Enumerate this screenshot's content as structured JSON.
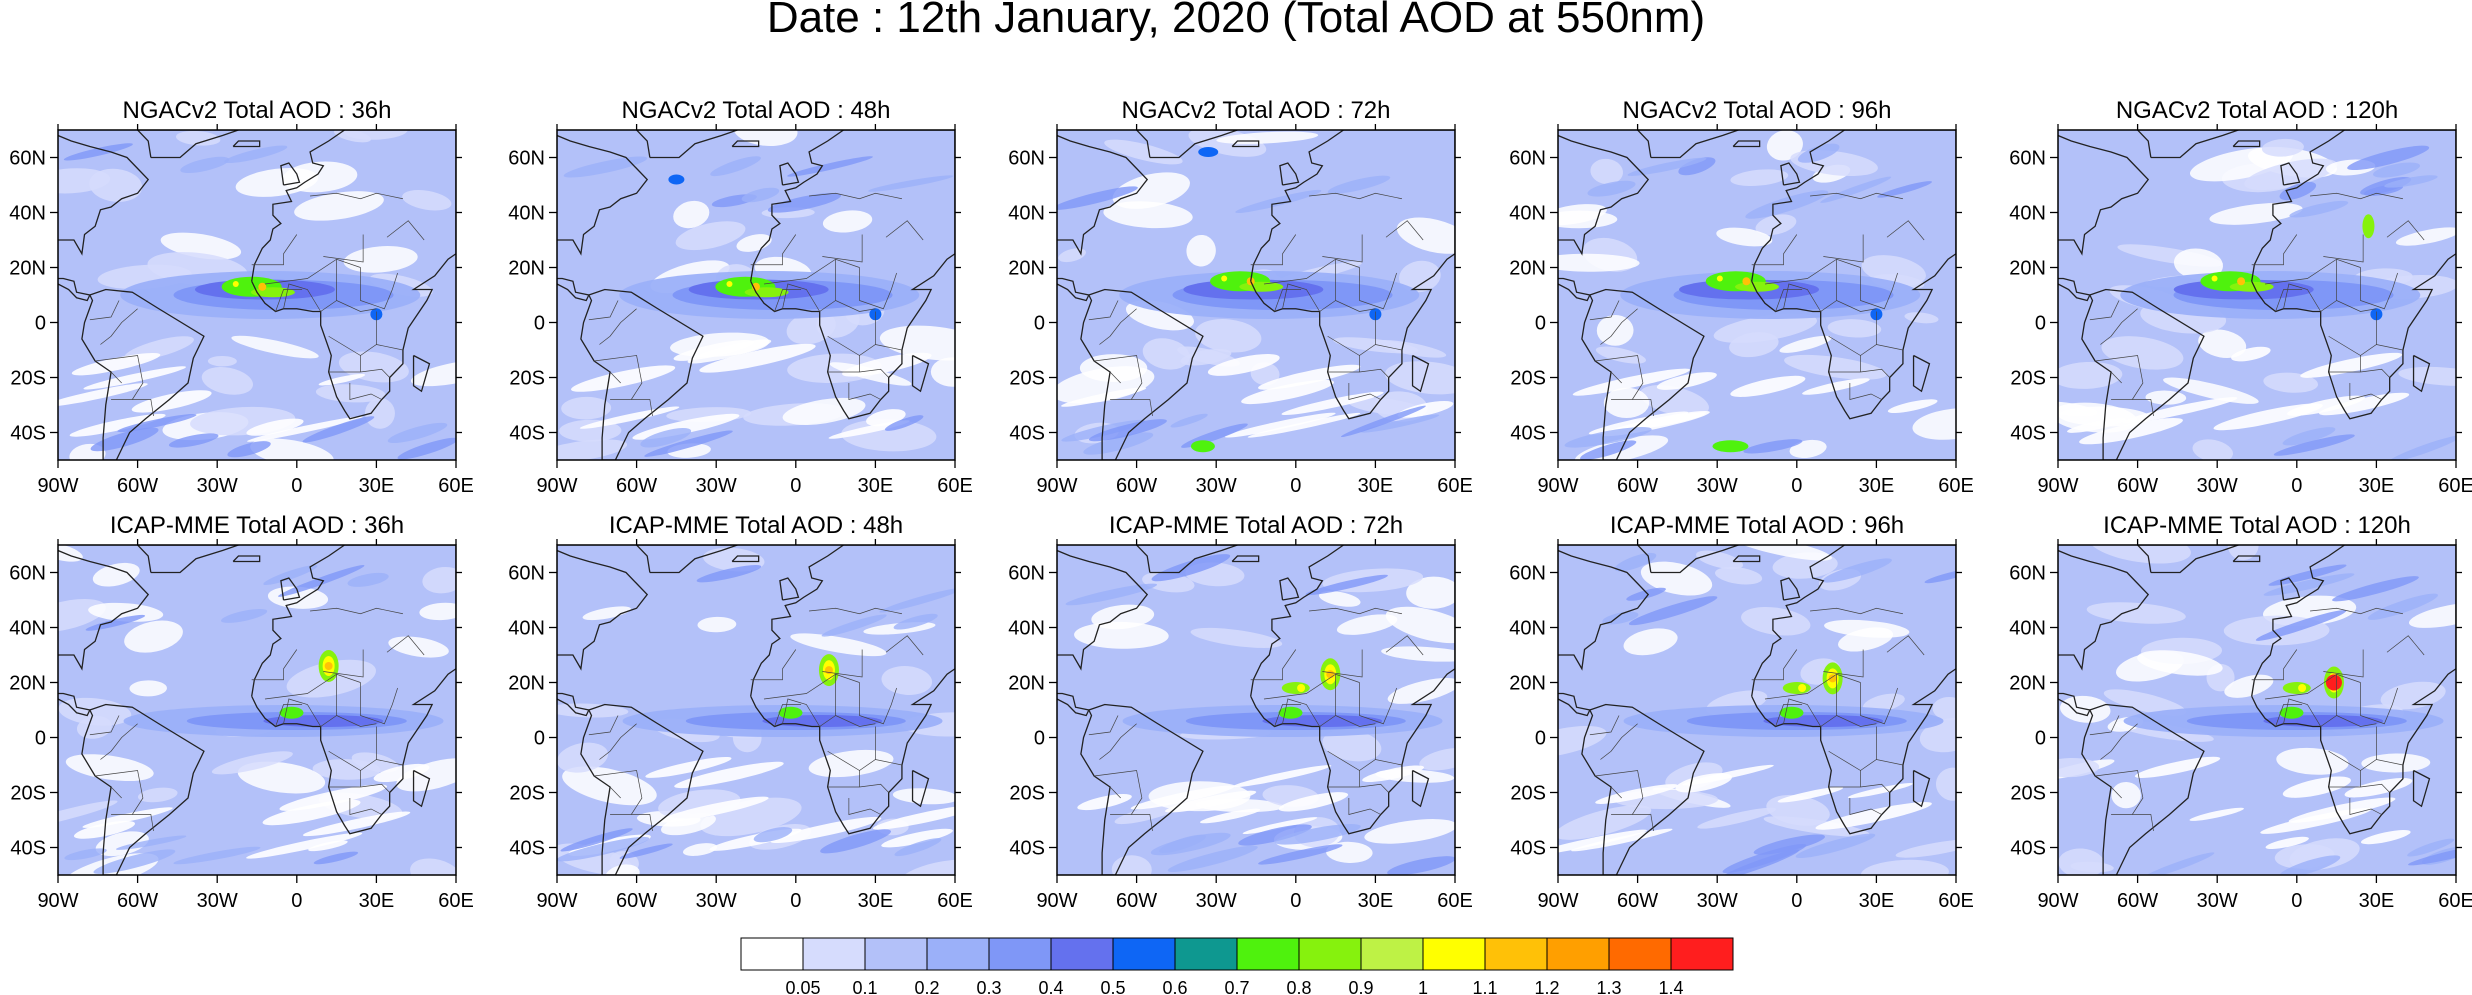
{
  "figure": {
    "title": "Date : 12th January, 2020 (Total AOD at 550nm)"
  },
  "map_extent": {
    "lon": [
      -90,
      60
    ],
    "lat": [
      -50,
      70
    ]
  },
  "lat_ticks": [
    {
      "value": 60,
      "label": "60N"
    },
    {
      "value": 40,
      "label": "40N"
    },
    {
      "value": 20,
      "label": "20N"
    },
    {
      "value": 0,
      "label": "0"
    },
    {
      "value": -20,
      "label": "20S"
    },
    {
      "value": -40,
      "label": "40S"
    }
  ],
  "lon_ticks": [
    {
      "value": -90,
      "label": "90W"
    },
    {
      "value": -60,
      "label": "60W"
    },
    {
      "value": -30,
      "label": "30W"
    },
    {
      "value": 0,
      "label": "0"
    },
    {
      "value": 30,
      "label": "30E"
    },
    {
      "value": 60,
      "label": "60E"
    }
  ],
  "rows": [
    {
      "model": "NGACv2",
      "panels": [
        {
          "title": "NGACv2 Total AOD : 36h",
          "lead_hours": 36
        },
        {
          "title": "NGACv2 Total AOD : 48h",
          "lead_hours": 48
        },
        {
          "title": "NGACv2 Total AOD : 72h",
          "lead_hours": 72
        },
        {
          "title": "NGACv2 Total AOD : 96h",
          "lead_hours": 96
        },
        {
          "title": "NGACv2 Total AOD : 120h",
          "lead_hours": 120
        }
      ]
    },
    {
      "model": "ICAP-MME",
      "panels": [
        {
          "title": "ICAP-MME Total AOD : 36h",
          "lead_hours": 36
        },
        {
          "title": "ICAP-MME Total AOD : 48h",
          "lead_hours": 48
        },
        {
          "title": "ICAP-MME Total AOD : 72h",
          "lead_hours": 72
        },
        {
          "title": "ICAP-MME Total AOD : 96h",
          "lead_hours": 96
        },
        {
          "title": "ICAP-MME Total AOD : 120h",
          "lead_hours": 120
        }
      ]
    }
  ],
  "colorbar": {
    "levels": [
      "0.05",
      "0.1",
      "0.2",
      "0.3",
      "0.4",
      "0.5",
      "0.6",
      "0.7",
      "0.8",
      "0.9",
      "1",
      "1.1",
      "1.2",
      "1.3",
      "1.4"
    ],
    "colors": [
      "#ffffff",
      "#d6dcfd",
      "#b3c1f9",
      "#9bb0f9",
      "#7f97f7",
      "#6471ee",
      "#0e66f5",
      "#0e9890",
      "#4ff20d",
      "#86f20d",
      "#bef245",
      "#ffff00",
      "#ffc107",
      "#ff9f00",
      "#ff6a00",
      "#ff1e1e"
    ]
  }
}
